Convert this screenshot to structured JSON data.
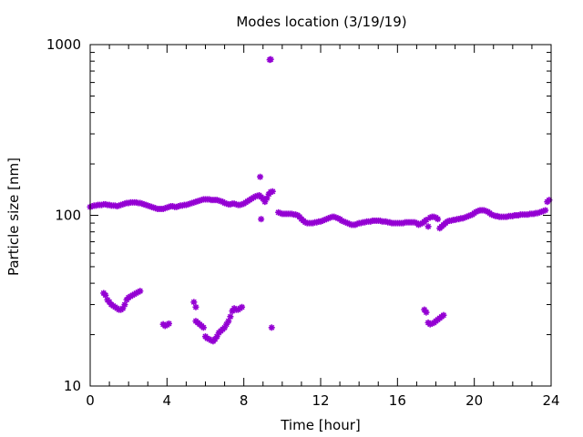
{
  "chart_data": {
    "type": "scatter",
    "title": "Modes location (3/19/19)",
    "xlabel": "Time [hour]",
    "ylabel": "Particle size [nm]",
    "xlim": [
      0,
      24
    ],
    "ylim": [
      10,
      1000
    ],
    "yscale": "log",
    "xticks": [
      0,
      4,
      8,
      12,
      16,
      20,
      24
    ],
    "xtick_labels": [
      "0",
      "4",
      "8",
      "12",
      "16",
      "20",
      "24"
    ],
    "yticks": [
      10,
      100,
      1000
    ],
    "ytick_labels": [
      "10",
      "100",
      "1000"
    ],
    "grid": false,
    "legend": false,
    "marker_color": "#9400d3",
    "series": [
      {
        "points": [
          [
            0.0,
            112
          ],
          [
            0.1,
            113
          ],
          [
            0.2,
            114
          ],
          [
            0.3,
            114
          ],
          [
            0.4,
            115
          ],
          [
            0.5,
            115
          ],
          [
            0.6,
            115
          ],
          [
            0.7,
            116
          ],
          [
            0.8,
            116
          ],
          [
            0.9,
            115
          ],
          [
            1.0,
            115
          ],
          [
            1.1,
            114
          ],
          [
            1.2,
            114
          ],
          [
            1.3,
            114
          ],
          [
            1.4,
            113
          ],
          [
            1.5,
            114
          ],
          [
            1.6,
            115
          ],
          [
            1.7,
            116
          ],
          [
            1.8,
            117
          ],
          [
            1.9,
            118
          ],
          [
            2.0,
            118
          ],
          [
            2.1,
            119
          ],
          [
            2.2,
            119
          ],
          [
            2.3,
            119
          ],
          [
            2.4,
            119
          ],
          [
            2.5,
            118
          ],
          [
            2.6,
            118
          ],
          [
            2.7,
            117
          ],
          [
            2.8,
            116
          ],
          [
            2.9,
            115
          ],
          [
            3.0,
            114
          ],
          [
            3.1,
            113
          ],
          [
            3.2,
            112
          ],
          [
            3.3,
            111
          ],
          [
            3.4,
            110
          ],
          [
            3.5,
            109
          ],
          [
            3.6,
            109
          ],
          [
            3.7,
            109
          ],
          [
            3.8,
            109
          ],
          [
            3.9,
            110
          ],
          [
            4.0,
            111
          ],
          [
            4.1,
            112
          ],
          [
            4.2,
            113
          ],
          [
            4.3,
            113
          ],
          [
            4.4,
            112
          ],
          [
            4.5,
            112
          ],
          [
            4.6,
            113
          ],
          [
            4.7,
            114
          ],
          [
            4.8,
            114
          ],
          [
            4.9,
            115
          ],
          [
            5.0,
            115
          ],
          [
            5.1,
            116
          ],
          [
            5.2,
            117
          ],
          [
            5.3,
            118
          ],
          [
            5.4,
            119
          ],
          [
            5.5,
            120
          ],
          [
            5.6,
            121
          ],
          [
            5.7,
            122
          ],
          [
            5.8,
            123
          ],
          [
            5.9,
            124
          ],
          [
            6.0,
            124
          ],
          [
            6.1,
            124
          ],
          [
            6.2,
            124
          ],
          [
            6.3,
            123
          ],
          [
            6.4,
            123
          ],
          [
            6.5,
            123
          ],
          [
            6.6,
            123
          ],
          [
            6.7,
            122
          ],
          [
            6.8,
            121
          ],
          [
            6.9,
            120
          ],
          [
            7.0,
            118
          ],
          [
            7.1,
            117
          ],
          [
            7.2,
            116
          ],
          [
            7.3,
            116
          ],
          [
            7.4,
            117
          ],
          [
            7.5,
            117
          ],
          [
            7.6,
            116
          ],
          [
            7.7,
            115
          ],
          [
            7.8,
            115
          ],
          [
            7.9,
            116
          ],
          [
            8.0,
            117
          ],
          [
            8.1,
            119
          ],
          [
            8.2,
            121
          ],
          [
            8.3,
            123
          ],
          [
            8.4,
            125
          ],
          [
            8.5,
            127
          ],
          [
            8.6,
            129
          ],
          [
            8.7,
            130
          ],
          [
            8.8,
            131
          ],
          [
            8.9,
            128
          ],
          [
            9.0,
            125
          ],
          [
            9.1,
            120
          ],
          [
            9.2,
            126
          ],
          [
            9.3,
            133
          ],
          [
            9.4,
            137
          ],
          [
            9.5,
            138
          ],
          [
            9.8,
            104
          ],
          [
            9.9,
            103
          ],
          [
            10.0,
            102
          ],
          [
            10.1,
            102
          ],
          [
            10.2,
            102
          ],
          [
            10.3,
            102
          ],
          [
            10.4,
            102
          ],
          [
            10.5,
            102
          ],
          [
            10.6,
            101
          ],
          [
            10.7,
            101
          ],
          [
            10.8,
            100
          ],
          [
            10.9,
            98
          ],
          [
            11.0,
            95
          ],
          [
            11.1,
            93
          ],
          [
            11.2,
            91
          ],
          [
            11.3,
            90
          ],
          [
            11.4,
            90
          ],
          [
            11.5,
            90
          ],
          [
            11.6,
            90
          ],
          [
            11.7,
            91
          ],
          [
            11.8,
            91
          ],
          [
            11.9,
            92
          ],
          [
            12.0,
            92
          ],
          [
            12.1,
            93
          ],
          [
            12.2,
            94
          ],
          [
            12.3,
            95
          ],
          [
            12.4,
            96
          ],
          [
            12.5,
            97
          ],
          [
            12.6,
            98
          ],
          [
            12.7,
            98
          ],
          [
            12.8,
            97
          ],
          [
            12.9,
            96
          ],
          [
            13.0,
            95
          ],
          [
            13.1,
            93
          ],
          [
            13.2,
            92
          ],
          [
            13.3,
            91
          ],
          [
            13.4,
            90
          ],
          [
            13.5,
            89
          ],
          [
            13.6,
            88
          ],
          [
            13.7,
            88
          ],
          [
            13.8,
            88
          ],
          [
            13.9,
            89
          ],
          [
            14.0,
            90
          ],
          [
            14.1,
            90
          ],
          [
            14.2,
            91
          ],
          [
            14.3,
            91
          ],
          [
            14.4,
            92
          ],
          [
            14.5,
            92
          ],
          [
            14.6,
            92
          ],
          [
            14.7,
            93
          ],
          [
            14.8,
            93
          ],
          [
            14.9,
            93
          ],
          [
            15.0,
            93
          ],
          [
            15.1,
            93
          ],
          [
            15.2,
            92
          ],
          [
            15.3,
            92
          ],
          [
            15.4,
            92
          ],
          [
            15.5,
            91
          ],
          [
            15.6,
            91
          ],
          [
            15.7,
            90
          ],
          [
            15.8,
            90
          ],
          [
            15.9,
            90
          ],
          [
            16.0,
            90
          ],
          [
            16.1,
            90
          ],
          [
            16.2,
            90
          ],
          [
            16.3,
            90
          ],
          [
            16.4,
            91
          ],
          [
            16.5,
            91
          ],
          [
            16.6,
            91
          ],
          [
            16.7,
            91
          ],
          [
            16.8,
            91
          ],
          [
            16.9,
            91
          ],
          [
            17.0,
            90
          ],
          [
            17.1,
            88
          ],
          [
            17.2,
            89
          ],
          [
            17.3,
            90
          ],
          [
            17.4,
            92
          ],
          [
            17.5,
            94
          ],
          [
            17.6,
            86
          ],
          [
            17.7,
            97
          ],
          [
            17.8,
            98
          ],
          [
            17.9,
            98
          ],
          [
            18.0,
            97
          ],
          [
            18.1,
            95
          ],
          [
            18.2,
            84
          ],
          [
            18.3,
            86
          ],
          [
            18.4,
            88
          ],
          [
            18.5,
            90
          ],
          [
            18.6,
            92
          ],
          [
            18.7,
            93
          ],
          [
            18.8,
            93
          ],
          [
            18.9,
            94
          ],
          [
            19.0,
            94
          ],
          [
            19.1,
            95
          ],
          [
            19.2,
            95
          ],
          [
            19.3,
            96
          ],
          [
            19.4,
            96
          ],
          [
            19.5,
            97
          ],
          [
            19.6,
            98
          ],
          [
            19.7,
            99
          ],
          [
            19.8,
            100
          ],
          [
            19.9,
            101
          ],
          [
            20.0,
            103
          ],
          [
            20.1,
            105
          ],
          [
            20.2,
            106
          ],
          [
            20.3,
            107
          ],
          [
            20.4,
            107
          ],
          [
            20.5,
            107
          ],
          [
            20.6,
            106
          ],
          [
            20.7,
            105
          ],
          [
            20.8,
            103
          ],
          [
            20.9,
            101
          ],
          [
            21.0,
            100
          ],
          [
            21.1,
            99
          ],
          [
            21.2,
            99
          ],
          [
            21.3,
            98
          ],
          [
            21.4,
            98
          ],
          [
            21.5,
            98
          ],
          [
            21.6,
            98
          ],
          [
            21.7,
            98
          ],
          [
            21.8,
            99
          ],
          [
            21.9,
            99
          ],
          [
            22.0,
            99
          ],
          [
            22.1,
            100
          ],
          [
            22.2,
            100
          ],
          [
            22.3,
            100
          ],
          [
            22.4,
            101
          ],
          [
            22.5,
            101
          ],
          [
            22.6,
            101
          ],
          [
            22.7,
            101
          ],
          [
            22.8,
            101
          ],
          [
            22.9,
            102
          ],
          [
            23.0,
            102
          ],
          [
            23.1,
            102
          ],
          [
            23.2,
            103
          ],
          [
            23.3,
            103
          ],
          [
            23.4,
            104
          ],
          [
            23.5,
            105
          ],
          [
            23.6,
            106
          ],
          [
            23.7,
            107
          ],
          [
            23.8,
            120
          ],
          [
            23.9,
            123
          ],
          [
            8.9,
            95
          ],
          [
            8.85,
            168
          ],
          [
            9.35,
            815
          ],
          [
            9.4,
            820
          ],
          [
            9.45,
            22
          ],
          [
            0.7,
            35
          ],
          [
            0.8,
            34
          ],
          [
            0.9,
            32
          ],
          [
            1.0,
            31
          ],
          [
            1.1,
            30
          ],
          [
            1.2,
            29.5
          ],
          [
            1.3,
            29
          ],
          [
            1.4,
            28.5
          ],
          [
            1.5,
            28
          ],
          [
            1.6,
            28
          ],
          [
            1.7,
            28.5
          ],
          [
            1.8,
            30
          ],
          [
            1.9,
            32
          ],
          [
            2.0,
            33
          ],
          [
            2.1,
            33.5
          ],
          [
            2.2,
            34
          ],
          [
            2.3,
            34.5
          ],
          [
            2.4,
            35
          ],
          [
            2.5,
            35.5
          ],
          [
            2.6,
            36
          ],
          [
            3.8,
            23
          ],
          [
            3.9,
            22.5
          ],
          [
            4.0,
            22.8
          ],
          [
            4.1,
            23.2
          ],
          [
            5.4,
            31
          ],
          [
            5.5,
            29
          ],
          [
            5.5,
            24
          ],
          [
            5.6,
            23.5
          ],
          [
            5.7,
            23
          ],
          [
            5.8,
            22.5
          ],
          [
            5.9,
            22
          ],
          [
            6.0,
            19.5
          ],
          [
            6.1,
            19
          ],
          [
            6.2,
            18.8
          ],
          [
            6.3,
            18.5
          ],
          [
            6.4,
            18.3
          ],
          [
            6.5,
            18.8
          ],
          [
            6.6,
            19.5
          ],
          [
            6.7,
            20.5
          ],
          [
            6.8,
            21
          ],
          [
            6.9,
            21.5
          ],
          [
            7.0,
            22
          ],
          [
            7.1,
            23
          ],
          [
            7.2,
            24
          ],
          [
            7.3,
            25.5
          ],
          [
            7.4,
            27.5
          ],
          [
            7.5,
            28.5
          ],
          [
            7.6,
            28
          ],
          [
            7.7,
            28
          ],
          [
            7.8,
            28.5
          ],
          [
            7.9,
            29
          ],
          [
            17.4,
            28
          ],
          [
            17.5,
            27
          ],
          [
            17.6,
            23.5
          ],
          [
            17.7,
            23
          ],
          [
            17.8,
            23.2
          ],
          [
            17.9,
            23.5
          ],
          [
            18.0,
            24
          ],
          [
            18.1,
            24.5
          ],
          [
            18.2,
            25
          ],
          [
            18.3,
            25.5
          ],
          [
            18.4,
            26
          ]
        ]
      }
    ]
  }
}
